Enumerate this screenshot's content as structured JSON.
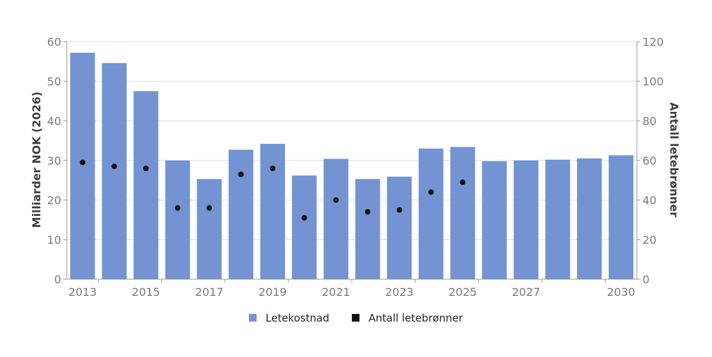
{
  "chart_data": {
    "type": "bar",
    "title": "",
    "categories": [
      "2013",
      "2014",
      "2015",
      "2016",
      "2017",
      "2018",
      "2019",
      "2020",
      "2021",
      "2022",
      "2023",
      "2024",
      "2025",
      "2026",
      "2027",
      "2028",
      "2029",
      "2030"
    ],
    "x_tick_labels": [
      "2013",
      "",
      "2015",
      "",
      "2017",
      "",
      "2019",
      "",
      "2021",
      "",
      "2023",
      "",
      "2025",
      "",
      "2027",
      "",
      "",
      "2030"
    ],
    "series": [
      {
        "name": "Letekostnad",
        "type": "bar",
        "axis": "left",
        "color": "#7393d2",
        "values": [
          57.2,
          54.6,
          47.5,
          30.0,
          25.3,
          32.7,
          34.2,
          26.2,
          30.4,
          25.3,
          25.9,
          33.0,
          33.4,
          29.8,
          30.0,
          30.2,
          30.5,
          31.3
        ]
      },
      {
        "name": "Antall letebrønner",
        "type": "scatter",
        "axis": "right",
        "color": "#111111",
        "values": [
          59,
          57,
          56,
          36,
          36,
          53,
          56,
          31,
          40,
          34,
          35,
          44,
          49,
          null,
          null,
          null,
          null,
          null
        ]
      }
    ],
    "ylabel": "Milliarder NOK (2026)",
    "y2label": "Antall letebrønner",
    "ylim": [
      0,
      60
    ],
    "y2lim": [
      0,
      120
    ],
    "y_ticks": [
      0,
      10,
      20,
      30,
      40,
      50,
      60
    ],
    "y2_ticks": [
      0,
      20,
      40,
      60,
      80,
      100,
      120
    ],
    "grid": true,
    "legend_position": "bottom-center"
  }
}
